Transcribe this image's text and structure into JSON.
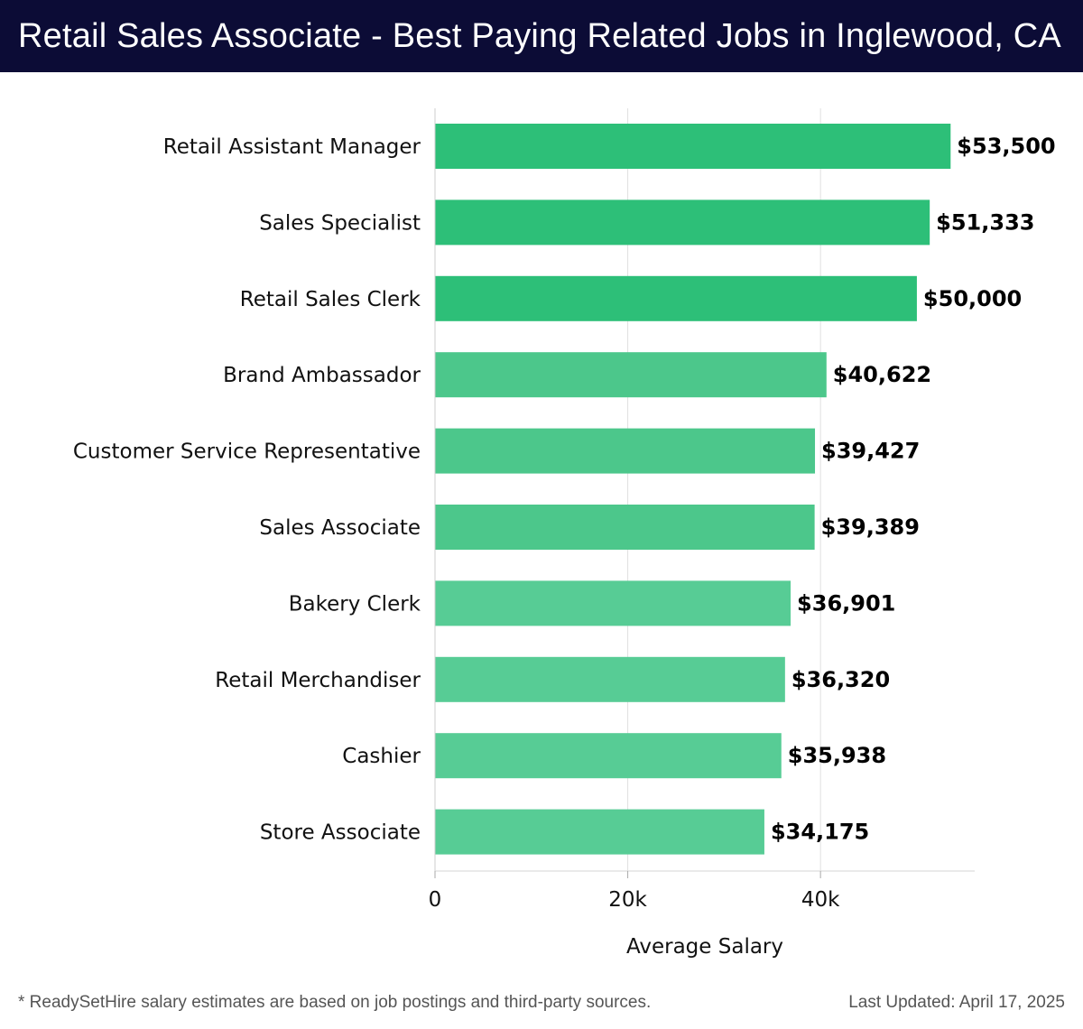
{
  "header": {
    "title": "Retail Sales Associate - Best Paying Related Jobs in Inglewood, CA"
  },
  "colors": {
    "header_bg": "#0c0c36",
    "bar_top": "#2dbf78",
    "bar_mid": "#4cc78b",
    "bar_low": "#57cc95",
    "grid": "#e0e0e0"
  },
  "chart_data": {
    "type": "bar",
    "orientation": "horizontal",
    "title": "Retail Sales Associate - Best Paying Related Jobs in Inglewood, CA",
    "xlabel": "Average Salary",
    "ylabel": "",
    "xlim": [
      0,
      56000
    ],
    "xticks": [
      0,
      20000,
      40000
    ],
    "xtick_labels": [
      "0",
      "20k",
      "40k"
    ],
    "grid": true,
    "categories": [
      "Retail Assistant Manager",
      "Sales Specialist",
      "Retail Sales Clerk",
      "Brand Ambassador",
      "Customer Service Representative",
      "Sales Associate",
      "Bakery Clerk",
      "Retail Merchandiser",
      "Cashier",
      "Store Associate"
    ],
    "values": [
      53500,
      51333,
      50000,
      40622,
      39427,
      39389,
      36901,
      36320,
      35938,
      34175
    ],
    "value_labels": [
      "$53,500",
      "$51,333",
      "$50,000",
      "$40,622",
      "$39,427",
      "$39,389",
      "$36,901",
      "$36,320",
      "$35,938",
      "$34,175"
    ]
  },
  "footer": {
    "note": "* ReadySetHire salary estimates are based on job postings and third-party sources.",
    "updated": "Last Updated: April 17, 2025"
  }
}
